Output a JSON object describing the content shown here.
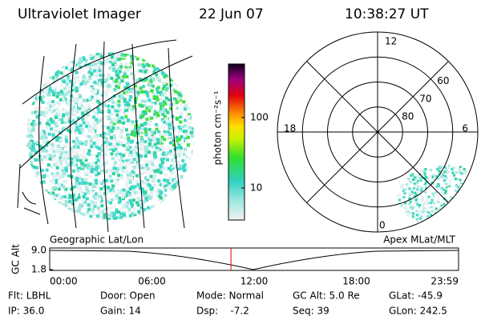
{
  "header": {
    "title": "Ultraviolet Imager",
    "date": "22 Jun 07",
    "time": "10:38:27 UT"
  },
  "map_labels": {
    "left": "Geographic Lat/Lon",
    "right": "Apex MLat/MLT"
  },
  "colorbar": {
    "label": "photon cm⁻²s⁻¹",
    "scale": "log",
    "lim": [
      3.5,
      577
    ],
    "ticks": [
      10,
      100
    ]
  },
  "polar": {
    "mlt_labels": [
      12,
      18,
      6,
      0
    ],
    "lat_labels": [
      60,
      70,
      80
    ],
    "lat_lim": [
      90,
      50
    ]
  },
  "altitude": {
    "y_label": "GC Alt",
    "yticks": [
      {
        "value": 9,
        "label": "9.0"
      },
      {
        "value": 1.8,
        "label": "1.8"
      }
    ],
    "xticks": [
      "00:00",
      "06:00",
      "12:00",
      "18:00",
      "23:59"
    ]
  },
  "footer": {
    "rows": [
      [
        "Flt: LBHL",
        "Door: Open",
        "Mode: Normal",
        "GC Alt: 5.0 Re",
        "GLat: -45.9"
      ],
      [
        "IP: 36.0",
        "Gain: 14",
        "Dsp:    -7.2",
        "Seq: 39",
        "GLon: 242.5"
      ]
    ]
  }
}
